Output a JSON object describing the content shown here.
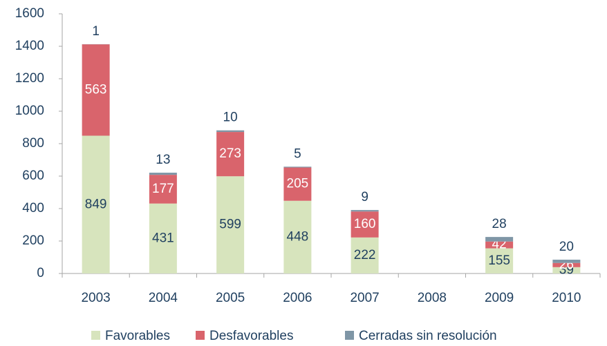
{
  "chart_data": {
    "type": "bar",
    "stacked": true,
    "categories": [
      "2003",
      "2004",
      "2005",
      "2006",
      "2007",
      "2008",
      "2009",
      "2010"
    ],
    "series": [
      {
        "name": "Favorables",
        "color": "#d7e4bd",
        "label_color": "#1f3f5f",
        "values": [
          849,
          431,
          599,
          448,
          222,
          null,
          155,
          39
        ]
      },
      {
        "name": "Desfavorables",
        "color": "#d9646c",
        "label_color": "#ffffff",
        "values": [
          563,
          177,
          273,
          205,
          160,
          null,
          42,
          26
        ]
      },
      {
        "name": "Cerradas sin resolución",
        "color": "#7f96a6",
        "label_color": "#1f3f5f",
        "values": [
          1,
          13,
          10,
          5,
          9,
          null,
          28,
          20
        ]
      }
    ],
    "ylim": [
      0,
      1600
    ],
    "yticks": [
      0,
      200,
      400,
      600,
      800,
      1000,
      1200,
      1400,
      1600
    ],
    "legend": "bottom"
  }
}
